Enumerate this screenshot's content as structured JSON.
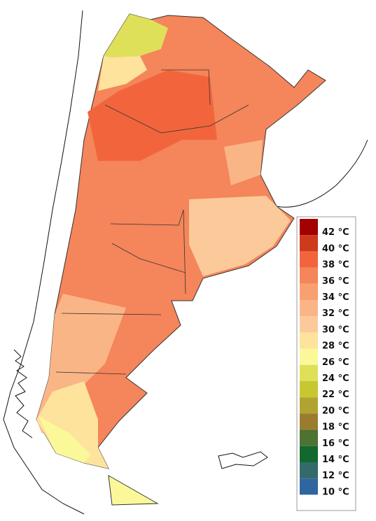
{
  "legend": {
    "items": [
      {
        "label": "42 °C",
        "color": "#a30000"
      },
      {
        "label": "40 °C",
        "color": "#cd3a1c"
      },
      {
        "label": "38 °C",
        "color": "#f2653c"
      },
      {
        "label": "36 °C",
        "color": "#f5855a"
      },
      {
        "label": "34 °C",
        "color": "#f8a070"
      },
      {
        "label": "32 °C",
        "color": "#fab587"
      },
      {
        "label": "30 °C",
        "color": "#fcca9a"
      },
      {
        "label": "28 °C",
        "color": "#fde39c"
      },
      {
        "label": "26 °C",
        "color": "#fbf89a"
      },
      {
        "label": "24 °C",
        "color": "#dfe05a"
      },
      {
        "label": "22 °C",
        "color": "#c7c831"
      },
      {
        "label": "20 °C",
        "color": "#b1a332"
      },
      {
        "label": "18 °C",
        "color": "#9b7c2e"
      },
      {
        "label": "16 °C",
        "color": "#4d7232"
      },
      {
        "label": "14 °C",
        "color": "#11692f"
      },
      {
        "label": "12 °C",
        "color": "#356a6a"
      },
      {
        "label": "10 °C",
        "color": "#2f66a0"
      }
    ]
  }
}
